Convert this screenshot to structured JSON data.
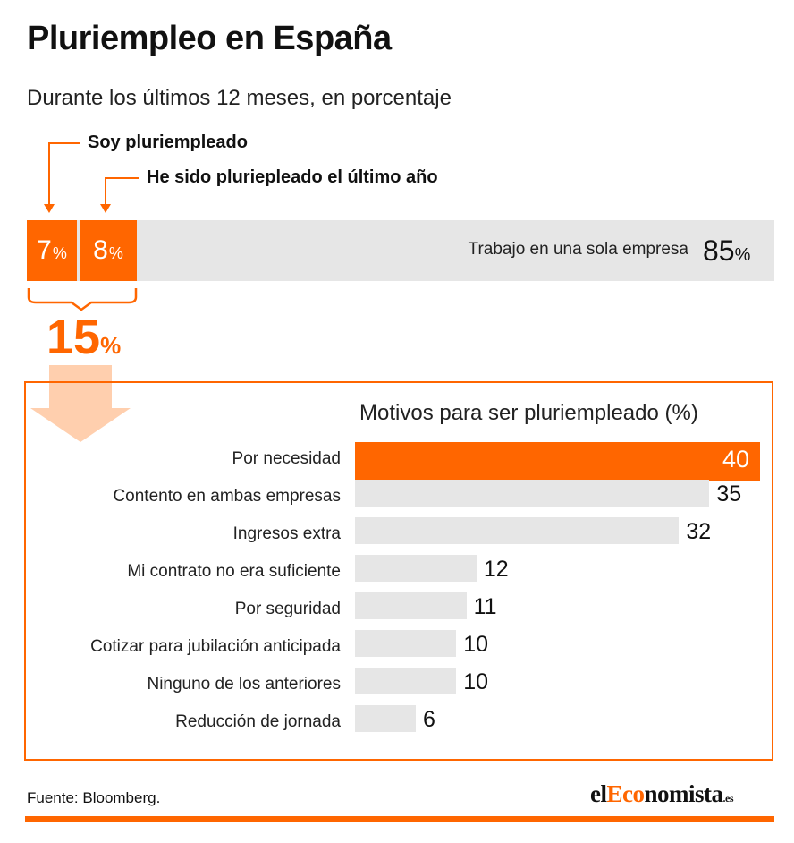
{
  "title": "Pluriempleo en España",
  "subtitle": "Durante los últimos 12 meses, en porcentaje",
  "summary": {
    "callout_current": "Soy pluriempleado",
    "callout_past": "He sido pluriepleado el último año",
    "current_value": "7",
    "past_value": "8",
    "single_label": "Trabajo en una sola empresa",
    "single_value": "85",
    "total_value": "15",
    "pct_sign": "%",
    "colors": {
      "accent": "#ff6600",
      "neutral": "#e6e6e6",
      "arrow": "#ffcfae"
    }
  },
  "chart_data": {
    "type": "bar",
    "orientation": "horizontal",
    "title": "Motivos para ser pluriempleado (%)",
    "categories": [
      "Por necesidad",
      "Contento en ambas empresas",
      "Ingresos extra",
      "Mi contrato no era suficiente",
      "Por seguridad",
      "Cotizar para jubilación anticipada",
      "Ninguno de los anteriores",
      "Reducción de jornada"
    ],
    "values": [
      40,
      35,
      32,
      12,
      11,
      10,
      10,
      6
    ],
    "highlight_index": 0,
    "xlim": [
      0,
      40
    ],
    "grid": false,
    "legend": "none"
  },
  "footer": {
    "source": "Fuente: Bloomberg.",
    "logo_prefix": "el",
    "logo_accent": "Eco",
    "logo_suffix": "nomista",
    "logo_tld": ".es"
  }
}
